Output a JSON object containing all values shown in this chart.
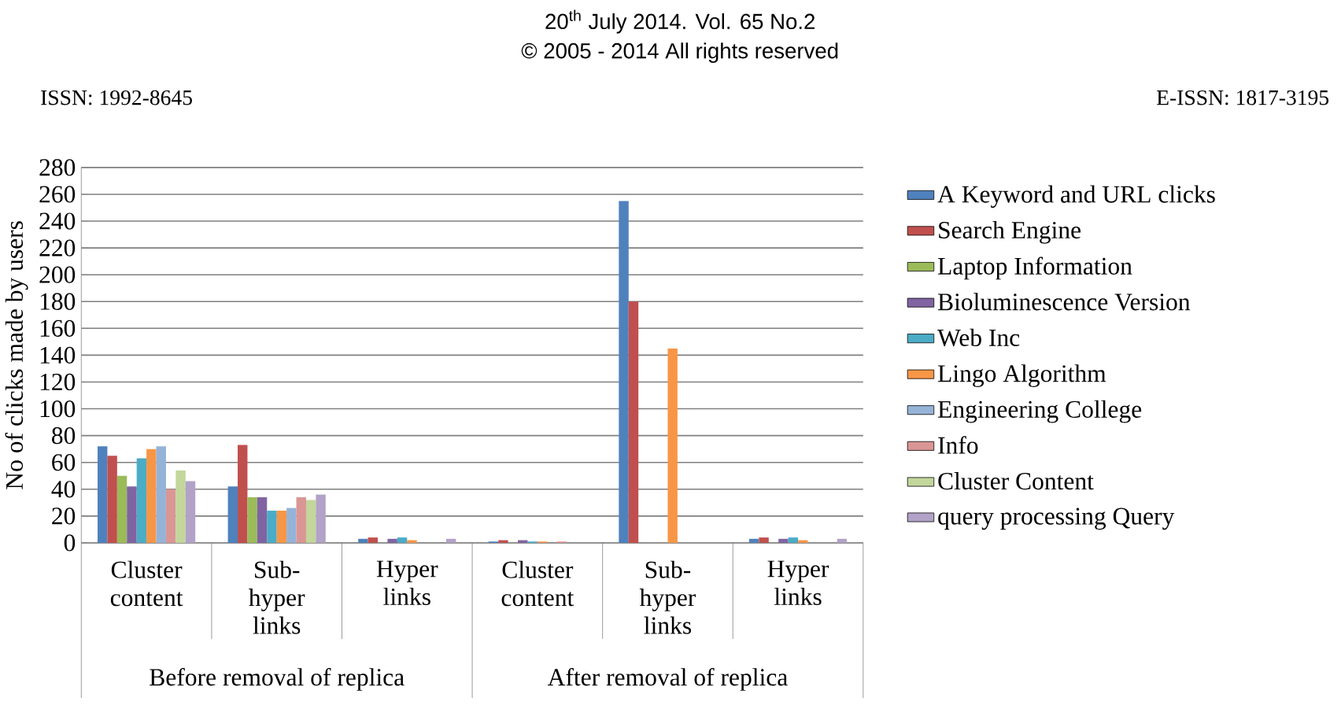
{
  "chart_data": {
    "type": "bar",
    "ylabel": "No of clicks made by users",
    "categories": [
      "Cluster content",
      "Sub-hyper links",
      "Hyper links",
      "Cluster content",
      "Sub-hyper links",
      "Hyper links"
    ],
    "series": [
      {
        "name": "A Keyword and URL clicks",
        "color": "#4f81bd",
        "values": [
          72,
          42,
          3,
          1,
          255,
          3
        ]
      },
      {
        "name": "Search Engine",
        "color": "#c0504d",
        "values": [
          65,
          73,
          4,
          2,
          180,
          4
        ]
      },
      {
        "name": "Laptop Information",
        "color": "#9bbb59",
        "values": [
          50,
          34,
          null,
          0,
          0,
          null
        ]
      },
      {
        "name": "Bioluminescence Version",
        "color": "#8064a2",
        "values": [
          42,
          34,
          3,
          2,
          0,
          3
        ]
      },
      {
        "name": "Web Inc",
        "color": "#4bacc6",
        "values": [
          63,
          24,
          4,
          1,
          0,
          4
        ]
      },
      {
        "name": "Lingo Algorithm",
        "color": "#f79646",
        "values": [
          70,
          24,
          2,
          1,
          145,
          2
        ]
      },
      {
        "name": "Engineering College",
        "color": "#95b3d7",
        "values": [
          72,
          26,
          0,
          0,
          0,
          0
        ]
      },
      {
        "name": "Info",
        "color": "#d99694",
        "values": [
          40,
          34,
          0,
          1,
          0,
          0
        ]
      },
      {
        "name": "Cluster Content",
        "color": "#c3d69b",
        "values": [
          54,
          32,
          0,
          0,
          0,
          0
        ]
      },
      {
        "name": "query processing Query",
        "color": "#b2a2c7",
        "values": [
          46,
          36,
          3,
          0,
          0,
          3
        ]
      }
    ],
    "ylim": [
      0,
      280
    ],
    "yticks": [
      0,
      20,
      40,
      60,
      80,
      100,
      120,
      140,
      160,
      180,
      200,
      220,
      240,
      260,
      280
    ],
    "grid": "y",
    "legend": "right",
    "annotations": [
      "Before removal of replica",
      "After removal of replica",
      "20$^{th}$ July 2014. Vol. 65 No.2",
      "© 2005 - 2014 All rights reserved",
      "ISSN: 1992-8645",
      "E-ISSN: 1817-3195"
    ]
  }
}
